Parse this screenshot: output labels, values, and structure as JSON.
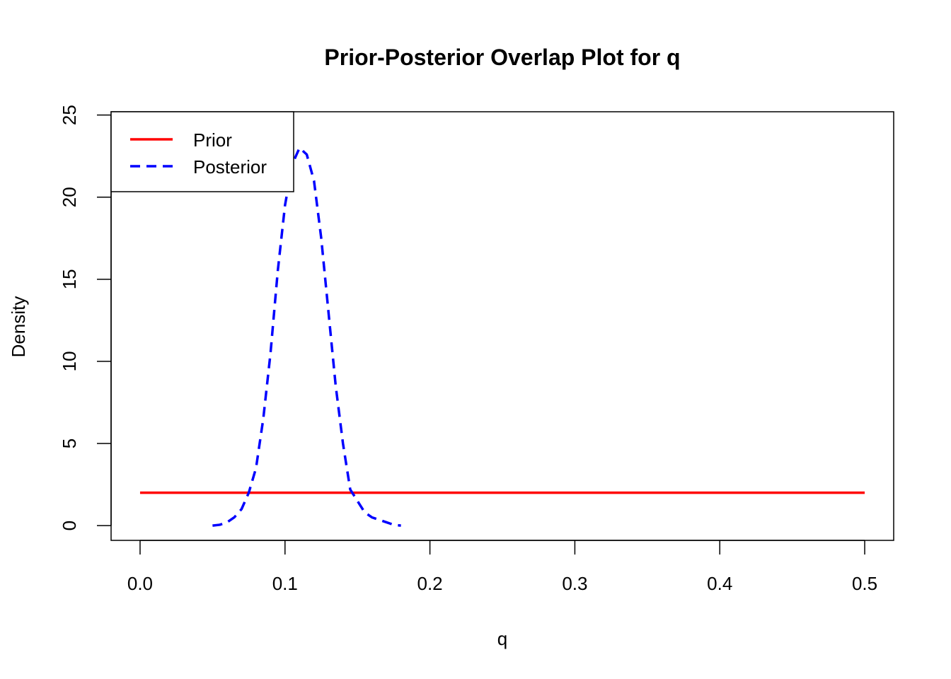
{
  "chart_data": {
    "type": "line",
    "title": "Prior-Posterior Overlap Plot for q",
    "xlabel": "q",
    "ylabel": "Density",
    "xlim": [
      -0.02,
      0.52
    ],
    "ylim": [
      -0.9,
      25.2
    ],
    "xticks": [
      0.0,
      0.1,
      0.2,
      0.3,
      0.4,
      0.5
    ],
    "xtick_labels": [
      "0.0",
      "0.1",
      "0.2",
      "0.3",
      "0.4",
      "0.5"
    ],
    "yticks": [
      0,
      5,
      10,
      15,
      20,
      25
    ],
    "ytick_labels": [
      "0",
      "5",
      "10",
      "15",
      "20",
      "25"
    ],
    "legend_position": "top-left",
    "series": [
      {
        "name": "Prior",
        "color": "#ff0000",
        "dash": "solid",
        "x": [
          0.0,
          0.5
        ],
        "y": [
          2.0,
          2.0
        ]
      },
      {
        "name": "Posterior",
        "color": "#0000ff",
        "dash": "dashed",
        "x": [
          0.05,
          0.055,
          0.06,
          0.065,
          0.07,
          0.075,
          0.08,
          0.085,
          0.09,
          0.095,
          0.1,
          0.105,
          0.11,
          0.115,
          0.12,
          0.125,
          0.13,
          0.135,
          0.14,
          0.145,
          0.15,
          0.155,
          0.16,
          0.165,
          0.17,
          0.175,
          0.18
        ],
        "y": [
          0.0,
          0.05,
          0.2,
          0.5,
          1.0,
          2.0,
          3.5,
          6.5,
          10.5,
          15.5,
          19.5,
          22.0,
          23.0,
          22.6,
          21.0,
          17.5,
          13.0,
          8.5,
          5.0,
          2.2,
          1.5,
          0.8,
          0.5,
          0.35,
          0.2,
          0.05,
          0.0
        ]
      }
    ]
  }
}
